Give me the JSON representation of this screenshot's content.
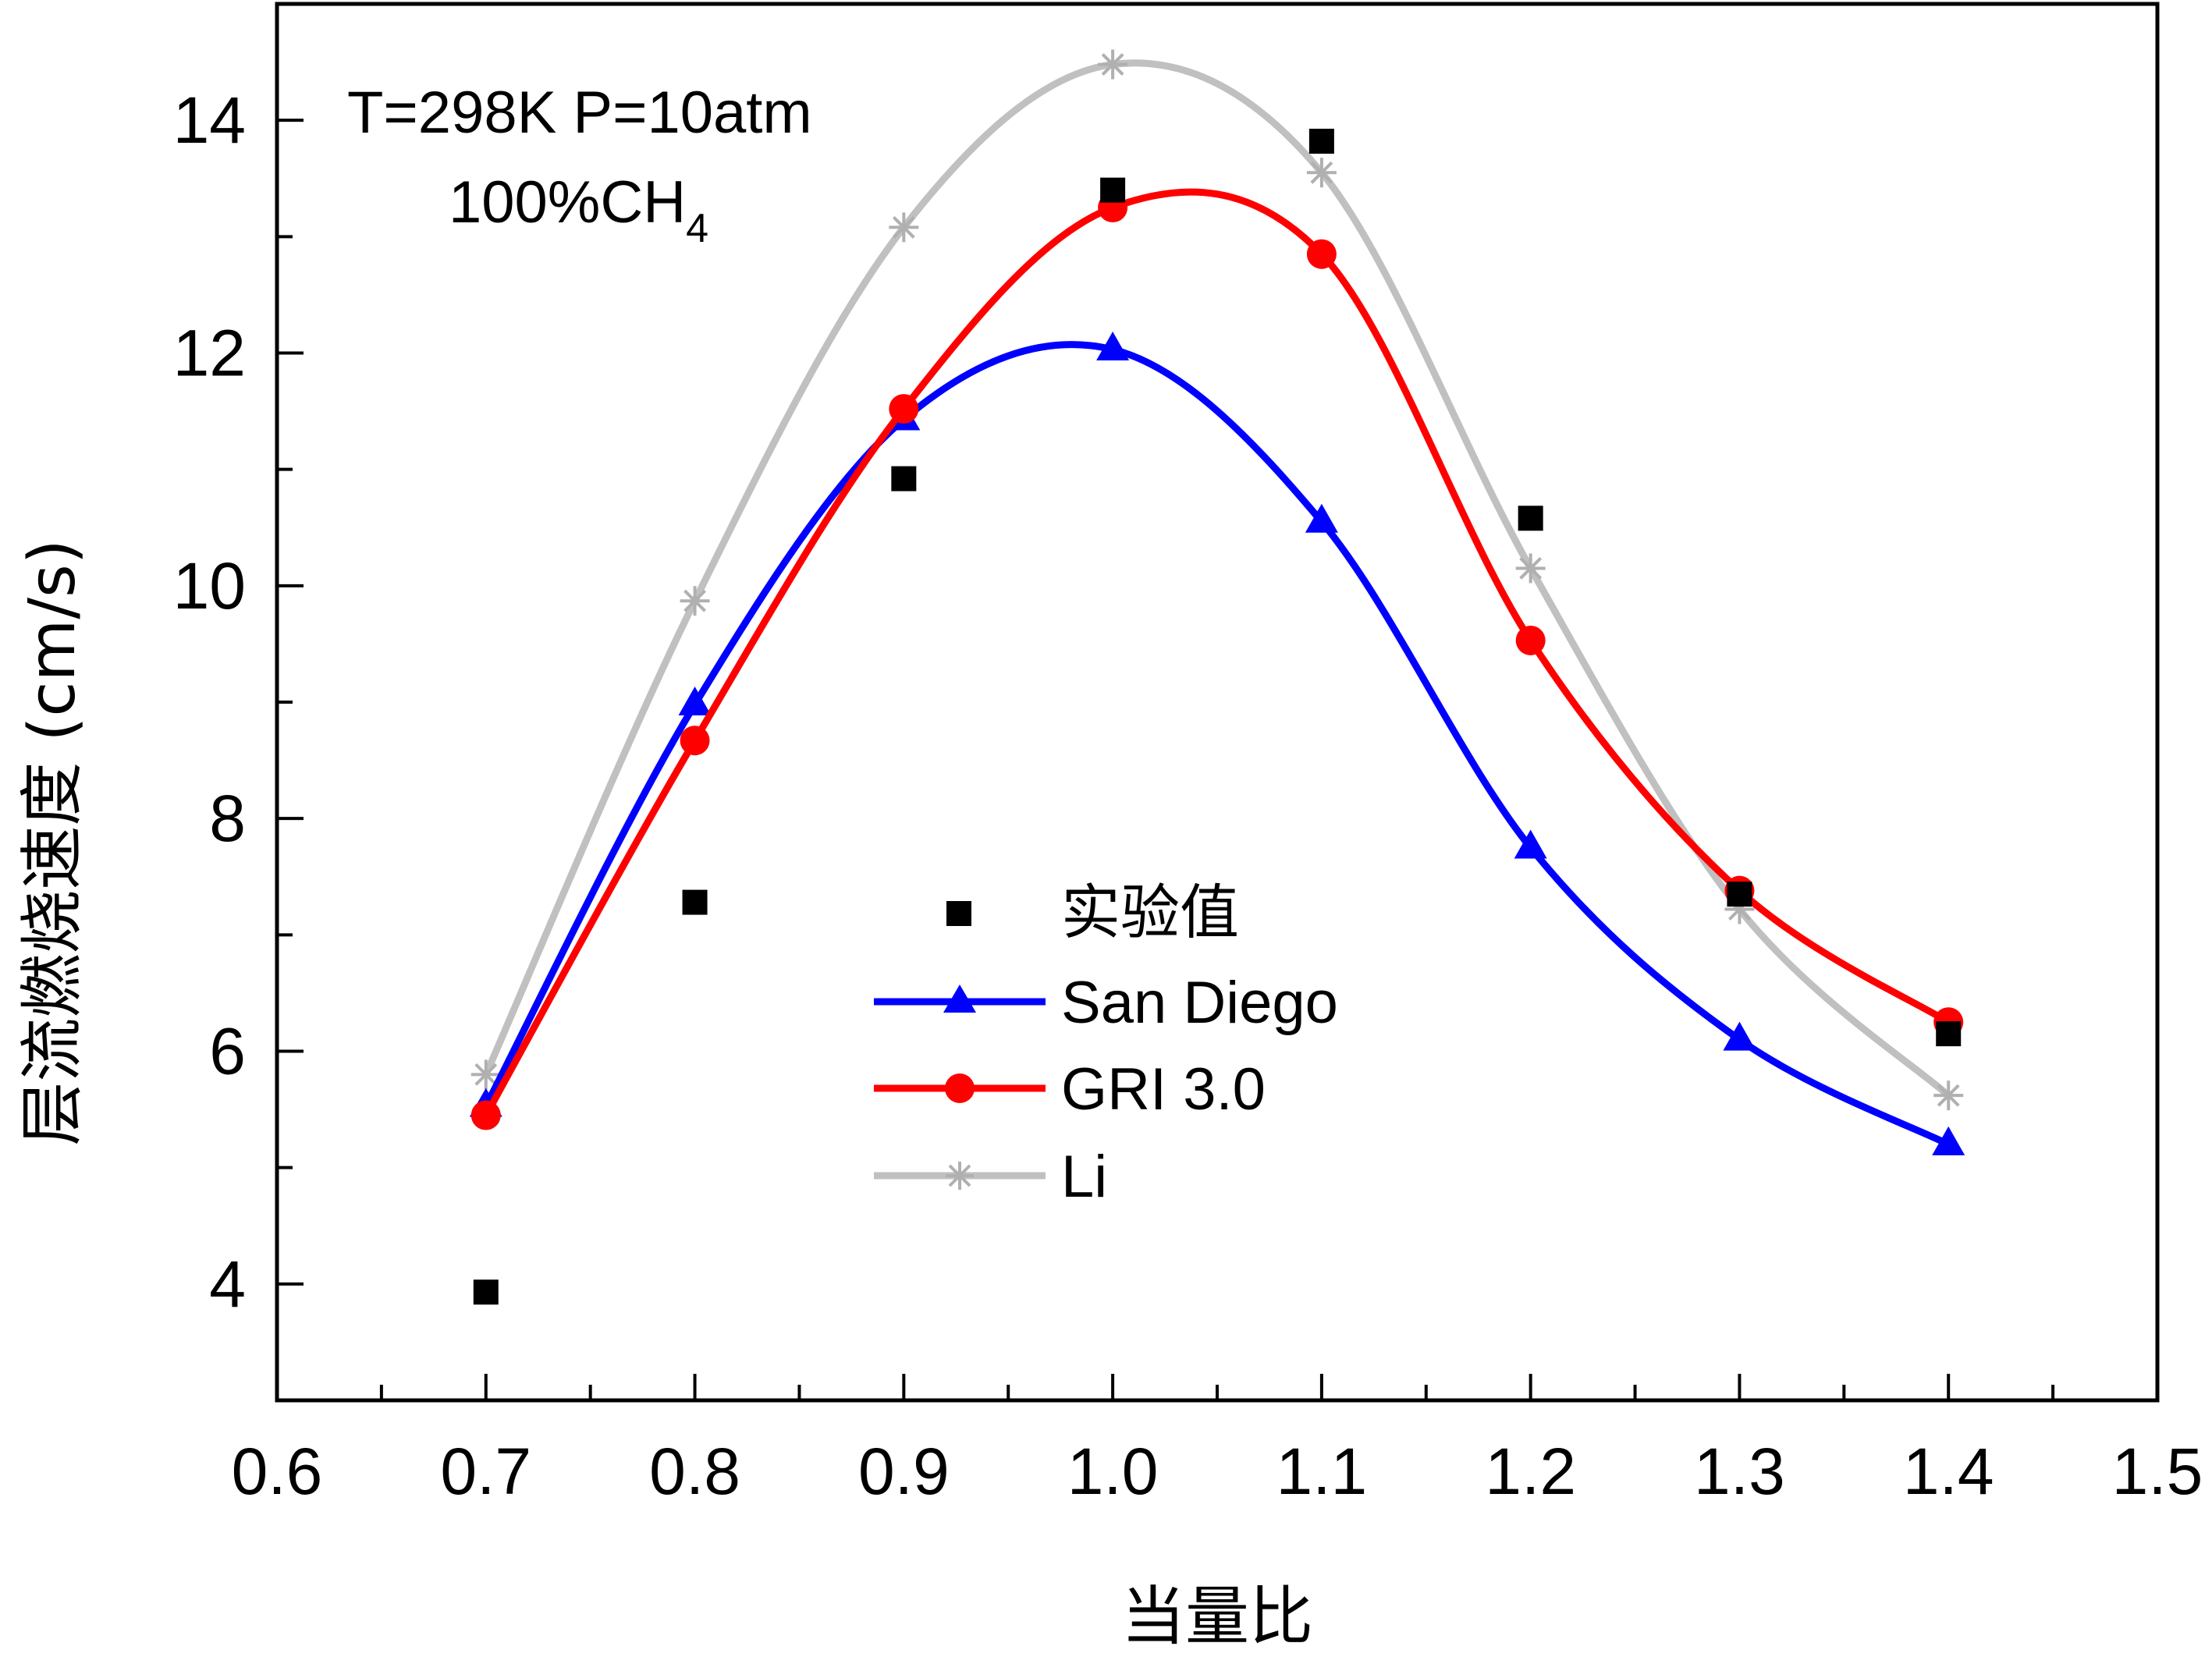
{
  "chart_data": {
    "type": "line",
    "title": "",
    "xlabel": "当量比",
    "ylabel": "层流燃烧速度 (cm/s)",
    "xlim": [
      0.6,
      1.5
    ],
    "ylim": [
      3,
      15
    ],
    "x_major_ticks": [
      "0.6",
      "0.7",
      "0.8",
      "0.9",
      "1.0",
      "1.1",
      "1.2",
      "1.3",
      "1.4",
      "1.5"
    ],
    "y_major_ticks": [
      "4",
      "6",
      "8",
      "10",
      "12",
      "14"
    ],
    "annotation": {
      "line1": "T=298K P=10atm",
      "line2_main": "100%CH",
      "line2_sub": "4"
    },
    "grid": false,
    "legend_position": "center",
    "series": [
      {
        "name": "实验值",
        "marker": "square",
        "style": "markers",
        "color": "#000000",
        "x": [
          0.7,
          0.8,
          0.9,
          1.0,
          1.1,
          1.2,
          1.3,
          1.4
        ],
        "values": [
          3.93,
          7.28,
          10.92,
          13.4,
          13.82,
          10.58,
          7.35,
          6.15
        ]
      },
      {
        "name": "San Diego",
        "marker": "triangle",
        "style": "line",
        "color": "#0000ff",
        "x": [
          0.7,
          0.8,
          0.9,
          1.0,
          1.1,
          1.2,
          1.3,
          1.4
        ],
        "values": [
          5.53,
          8.98,
          11.43,
          12.03,
          10.55,
          7.75,
          6.1,
          5.2
        ]
      },
      {
        "name": "GRI 3.0",
        "marker": "circle",
        "style": "line",
        "color": "#ff0000",
        "x": [
          0.7,
          0.8,
          0.9,
          1.0,
          1.1,
          1.2,
          1.3,
          1.4
        ],
        "values": [
          5.45,
          8.67,
          11.52,
          13.25,
          12.85,
          9.53,
          7.38,
          6.25
        ]
      },
      {
        "name": "Li",
        "marker": "asterisk",
        "style": "line",
        "color": "#c0c0c0",
        "x": [
          0.7,
          0.8,
          0.9,
          1.0,
          1.1,
          1.2,
          1.3,
          1.4
        ],
        "values": [
          5.8,
          9.87,
          13.08,
          14.48,
          13.55,
          10.15,
          7.22,
          5.62
        ]
      }
    ]
  }
}
